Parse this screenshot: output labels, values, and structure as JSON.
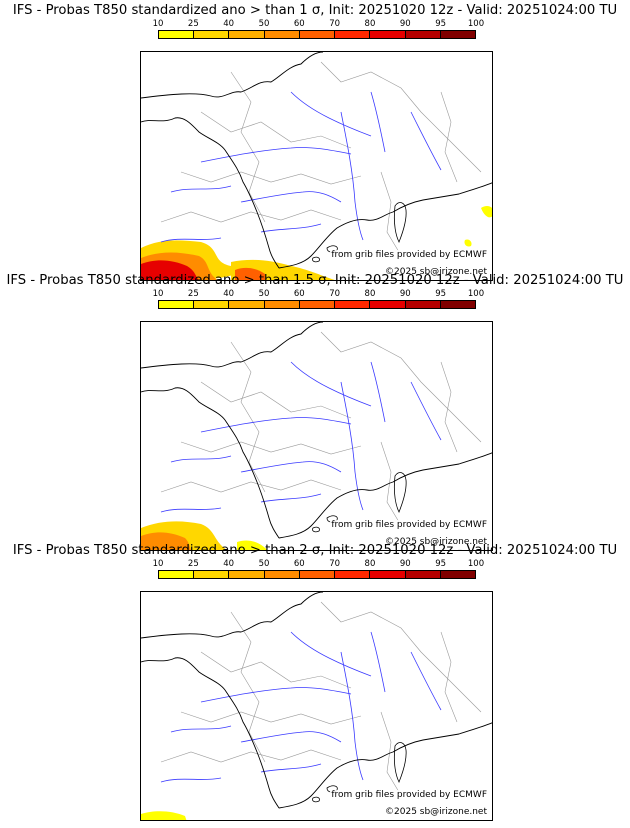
{
  "colorbar": {
    "ticks": [
      "10",
      "25",
      "40",
      "50",
      "60",
      "70",
      "80",
      "90",
      "95",
      "100"
    ],
    "colors": [
      "#ffff00",
      "#ffd700",
      "#ffb000",
      "#ff8c00",
      "#ff6000",
      "#ff2800",
      "#e60000",
      "#b40000",
      "#800000"
    ]
  },
  "panels": [
    {
      "title": "IFS - Probas T850  standardized ano > than 1 σ, Init: 20251020 12z - Valid: 20251024:00 TU",
      "credit_source": "from grib files provided by ECMWF",
      "credit_copyright": "©2025 sb@irizone.net",
      "severity": "high"
    },
    {
      "title": "IFS - Probas T850  standardized ano > than 1.5 σ, Init: 20251020 12z - Valid: 20251024:00 TU",
      "credit_source": "from grib files provided by ECMWF",
      "credit_copyright": "©2025 sb@irizone.net",
      "severity": "medium"
    },
    {
      "title": "IFS - Probas T850  standardized ano > than 2 σ, Init: 20251020 12z - Valid: 20251024:00 TU",
      "credit_source": "from grib files provided by ECMWF",
      "credit_copyright": "©2025 sb@irizone.net",
      "severity": "low"
    }
  ]
}
